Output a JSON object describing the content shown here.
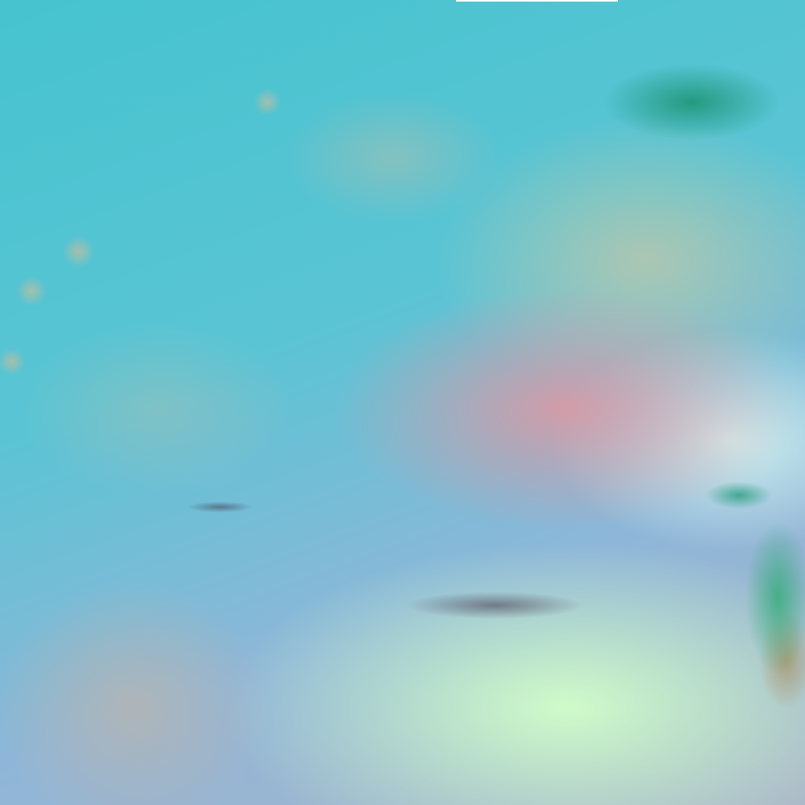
{
  "image": {
    "kind": "satellite false-color composite",
    "colors": {
      "ocean": "#4fc6cf",
      "land_desert": "#e296a0",
      "bright_surface": "#d2ffc8",
      "vegetation": "#148c64",
      "top_bar": "#ffffff"
    }
  }
}
